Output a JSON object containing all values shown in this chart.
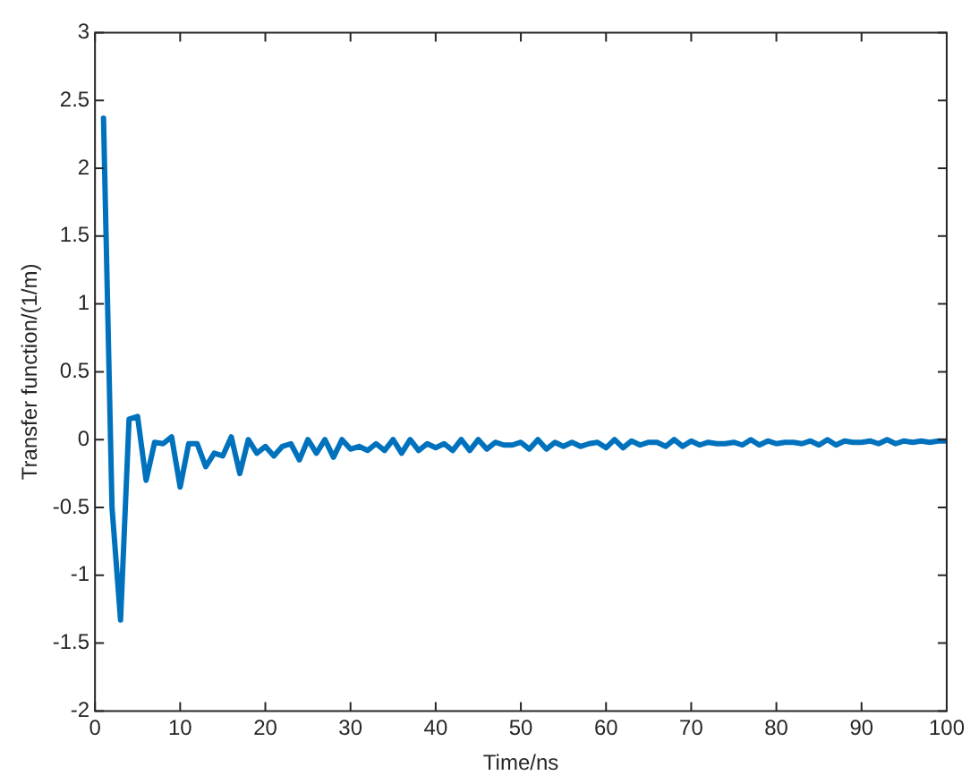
{
  "chart_data": {
    "type": "line",
    "xlabel": "Time/ns",
    "ylabel": "Transfer function/(1/m)",
    "x": [
      1,
      2,
      3,
      4,
      5,
      6,
      7,
      8,
      9,
      10,
      11,
      12,
      13,
      14,
      15,
      16,
      17,
      18,
      19,
      20,
      21,
      22,
      23,
      24,
      25,
      26,
      27,
      28,
      29,
      30,
      31,
      32,
      33,
      34,
      35,
      36,
      37,
      38,
      39,
      40,
      41,
      42,
      43,
      44,
      45,
      46,
      47,
      48,
      49,
      50,
      51,
      52,
      53,
      54,
      55,
      56,
      57,
      58,
      59,
      60,
      61,
      62,
      63,
      64,
      65,
      66,
      67,
      68,
      69,
      70,
      71,
      72,
      73,
      74,
      75,
      76,
      77,
      78,
      79,
      80,
      81,
      82,
      83,
      84,
      85,
      86,
      87,
      88,
      89,
      90,
      91,
      92,
      93,
      94,
      95,
      96,
      97,
      98,
      99,
      100
    ],
    "series": [
      {
        "color": "#0072bd",
        "values": [
          2.37,
          -0.5,
          -1.33,
          0.15,
          0.17,
          -0.3,
          -0.02,
          -0.03,
          0.02,
          -0.35,
          -0.03,
          -0.03,
          -0.2,
          -0.1,
          -0.12,
          0.02,
          -0.25,
          0,
          -0.1,
          -0.05,
          -0.12,
          -0.05,
          -0.03,
          -0.15,
          0,
          -0.1,
          0,
          -0.13,
          0,
          -0.07,
          -0.05,
          -0.08,
          -0.03,
          -0.08,
          0,
          -0.1,
          0,
          -0.08,
          -0.03,
          -0.06,
          -0.03,
          -0.08,
          0,
          -0.08,
          0,
          -0.07,
          -0.02,
          -0.04,
          -0.04,
          -0.02,
          -0.07,
          0,
          -0.07,
          -0.02,
          -0.05,
          -0.02,
          -0.05,
          -0.03,
          -0.02,
          -0.06,
          0,
          -0.06,
          -0.01,
          -0.04,
          -0.02,
          -0.02,
          -0.05,
          0,
          -0.05,
          -0.01,
          -0.04,
          -0.02,
          -0.03,
          -0.03,
          -0.02,
          -0.04,
          0,
          -0.04,
          -0.01,
          -0.03,
          -0.02,
          -0.02,
          -0.03,
          -0.01,
          -0.04,
          0,
          -0.04,
          -0.01,
          -0.02,
          -0.02,
          -0.01,
          -0.03,
          0,
          -0.03,
          -0.01,
          -0.02,
          -0.01,
          -0.02,
          -0.01,
          -0.01
        ]
      }
    ],
    "xlim": [
      0,
      100
    ],
    "xticks": [
      0,
      10,
      20,
      30,
      40,
      50,
      60,
      70,
      80,
      90,
      100
    ],
    "ylim": [
      -2,
      3
    ],
    "yticks": [
      -2,
      -1.5,
      -1,
      -0.5,
      0,
      0.5,
      1,
      1.5,
      2,
      2.5,
      3
    ],
    "grid": false,
    "legend": false,
    "marker": "none",
    "line_style": "solid"
  }
}
